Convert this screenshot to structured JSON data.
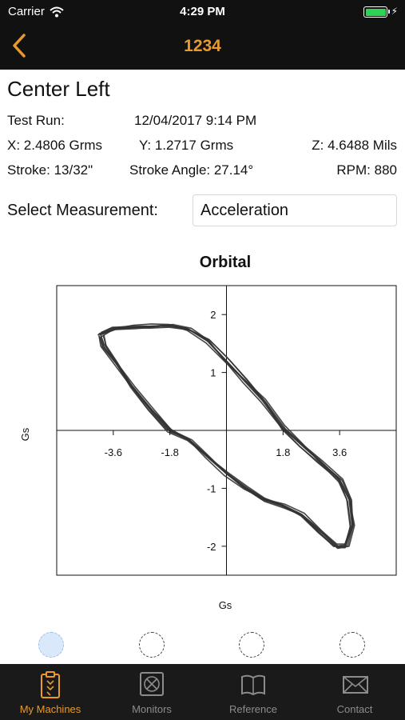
{
  "status_bar": {
    "carrier": "Carrier",
    "time": "4:29 PM"
  },
  "nav": {
    "title": "1234"
  },
  "machine": {
    "name": "Center Left"
  },
  "test_run": {
    "label": "Test Run:",
    "value": "12/04/2017 9:14 PM"
  },
  "axes": {
    "x": "X: 2.4806 Grms",
    "y": "Y: 1.2717 Grms",
    "z": "Z: 4.6488 Mils"
  },
  "metrics": {
    "stroke": "Stroke: 13/32\"",
    "stroke_angle": "Stroke Angle: 27.14°",
    "rpm": "RPM: 880"
  },
  "measurement": {
    "label": "Select Measurement:",
    "value": "Acceleration"
  },
  "chart_data": {
    "type": "line",
    "title": "Orbital",
    "xlabel": "Gs",
    "ylabel": "Gs",
    "xlim": [
      -5.4,
      5.4
    ],
    "ylim": [
      -2.5,
      2.5
    ],
    "x_ticks": [
      -3.6,
      -1.8,
      1.8,
      3.6
    ],
    "x_tick_labels": [
      "-3.6",
      "-1.8",
      "1.8",
      "3.6"
    ],
    "y_ticks": [
      2,
      1,
      -1,
      -2
    ],
    "y_tick_labels": [
      "2",
      "1",
      "-1",
      "-2"
    ],
    "grid": false,
    "series": [
      {
        "x": [
          -4.0,
          -3.6,
          -3.0,
          -2.4,
          -1.8,
          -1.2,
          -0.6,
          0,
          0.6,
          1.2,
          1.8,
          2.4,
          3.0,
          3.6,
          3.9,
          4.0,
          3.8,
          3.5,
          3.0,
          2.4,
          1.8,
          1.2,
          0.6,
          0,
          -0.6,
          -1.2,
          -1.8,
          -2.4,
          -3.0,
          -3.5,
          -3.9,
          -4.0
        ],
        "y": [
          1.65,
          1.75,
          1.78,
          1.8,
          1.82,
          1.75,
          1.55,
          1.2,
          0.85,
          0.5,
          0.05,
          -0.25,
          -0.55,
          -0.85,
          -1.2,
          -1.65,
          -2.0,
          -2.0,
          -1.75,
          -1.45,
          -1.3,
          -1.2,
          -1.0,
          -0.75,
          -0.45,
          -0.15,
          0.0,
          0.35,
          0.75,
          1.15,
          1.45,
          1.65
        ]
      }
    ]
  },
  "pagination": {
    "count": 4,
    "active": 0
  },
  "tabs": [
    {
      "label": "My Machines",
      "icon": "clipboard-icon"
    },
    {
      "label": "Monitors",
      "icon": "monitor-sensor-icon"
    },
    {
      "label": "Reference",
      "icon": "book-icon"
    },
    {
      "label": "Contact",
      "icon": "envelope-icon"
    }
  ],
  "colors": {
    "accent": "#e89a2c",
    "bar_bg": "#111111",
    "trace": "#333333"
  }
}
